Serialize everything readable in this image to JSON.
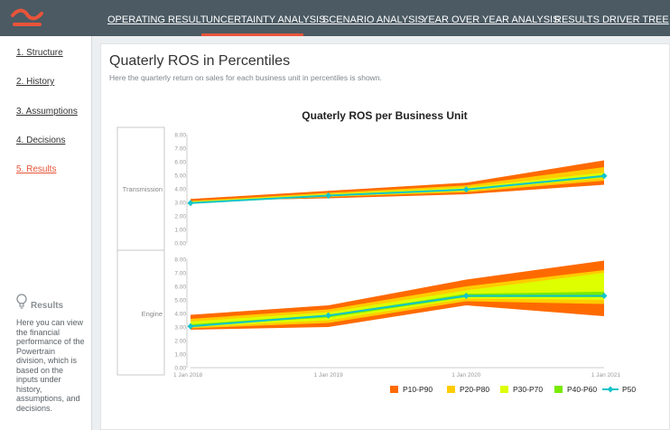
{
  "nav": {
    "items": [
      {
        "label": "OPERATING RESULT"
      },
      {
        "label": "UNCERTAINTY ANALYSIS"
      },
      {
        "label": "SCENARIO ANALYSIS"
      },
      {
        "label": "YEAR OVER YEAR ANALYSIS"
      },
      {
        "label": "RESULTS DRIVER TREE"
      }
    ],
    "active_index": 1
  },
  "sidebar": {
    "items": [
      {
        "label": "1. Structure"
      },
      {
        "label": "2. History"
      },
      {
        "label": "3. Assumptions"
      },
      {
        "label": "4. Decisions"
      },
      {
        "label": "5. Results"
      }
    ],
    "active_index": 4,
    "help_title": "Results",
    "help_text": "Here you can view the financial performance of the Powertrain division, which is based on the inputs under history, assumptions, and decisions."
  },
  "page": {
    "title": "Quaterly ROS in Percentiles",
    "subtitle": "Here the quarterly return on sales for each business unit in percentiles is shown."
  },
  "colors": {
    "accent": "#e8543a",
    "p10_p90": "#ff6a00",
    "p20_p80": "#ffcc00",
    "p30_p70": "#ddff00",
    "p40_p60": "#7aea00",
    "p50": "#13c4c9"
  },
  "chart_data": {
    "type": "area",
    "title": "Quaterly ROS per Business Unit",
    "x": [
      "1 Jan 2018",
      "1 Jan 2019",
      "1 Jan 2020",
      "1 Jan 2021"
    ],
    "ylim": [
      0,
      8
    ],
    "y_ticks": [
      "0.00",
      "1.00",
      "2.00",
      "3.00",
      "4.00",
      "5.00",
      "6.00",
      "7.00",
      "8.00"
    ],
    "legend": [
      "P10-P90",
      "P20-P80",
      "P30-P70",
      "P40-P60",
      "P50"
    ],
    "panels": [
      {
        "name": "Transmission",
        "p10": [
          3.1,
          3.3,
          3.6,
          4.3
        ],
        "p20": [
          3.0,
          3.4,
          3.75,
          4.6
        ],
        "p30": [
          2.95,
          3.42,
          3.85,
          4.8
        ],
        "p40": [
          2.9,
          3.45,
          3.9,
          4.85
        ],
        "p50": [
          2.95,
          3.5,
          3.95,
          4.95
        ],
        "p60": [
          3.0,
          3.55,
          4.0,
          5.0
        ],
        "p70": [
          3.05,
          3.6,
          4.1,
          5.2
        ],
        "p80": [
          3.1,
          3.7,
          4.25,
          5.6
        ],
        "p90": [
          3.25,
          3.85,
          4.45,
          6.1
        ]
      },
      {
        "name": "Engine",
        "p10": [
          2.8,
          3.0,
          4.6,
          3.8
        ],
        "p20": [
          2.9,
          3.3,
          4.9,
          4.7
        ],
        "p30": [
          3.0,
          3.5,
          5.1,
          5.0
        ],
        "p40": [
          3.1,
          3.7,
          5.2,
          5.2
        ],
        "p50": [
          3.05,
          3.85,
          5.3,
          5.3
        ],
        "p60": [
          3.2,
          3.9,
          5.45,
          5.6
        ],
        "p70": [
          3.4,
          4.1,
          5.7,
          7.0
        ],
        "p80": [
          3.6,
          4.3,
          6.0,
          7.2
        ],
        "p90": [
          3.9,
          4.6,
          6.5,
          7.9
        ]
      }
    ]
  }
}
